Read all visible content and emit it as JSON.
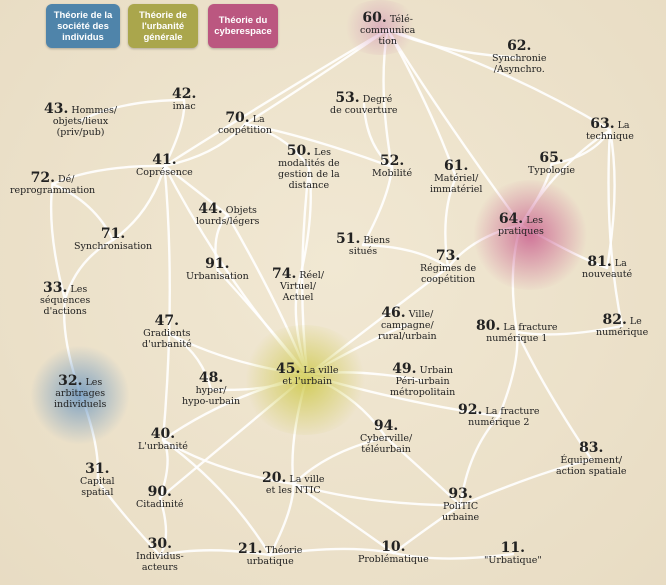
{
  "legend": {
    "individus": "Théorie de la société des individus",
    "urbanite": "Théorie de l'urbanité générale",
    "cyberespace": "Théorie du cyberespace"
  },
  "nodes": [
    {
      "id": "60",
      "num": "60.",
      "label": "Télé-communica tion"
    },
    {
      "id": "62",
      "num": "62.",
      "label": "Synchronie /Asynchro."
    },
    {
      "id": "42",
      "num": "42.",
      "label": "imac"
    },
    {
      "id": "43",
      "num": "43.",
      "label": "Hommes/ objets/lieux (priv/pub)"
    },
    {
      "id": "70",
      "num": "70.",
      "label": "La coopétition"
    },
    {
      "id": "53",
      "num": "53.",
      "label": "Degré de couverture"
    },
    {
      "id": "63",
      "num": "63.",
      "label": "La technique"
    },
    {
      "id": "41",
      "num": "41.",
      "label": "Coprésence"
    },
    {
      "id": "50",
      "num": "50.",
      "label": "Les modalités de gestion de la distance"
    },
    {
      "id": "52",
      "num": "52.",
      "label": "Mobilité"
    },
    {
      "id": "61",
      "num": "61.",
      "label": "Matériel/ immatériel"
    },
    {
      "id": "65",
      "num": "65.",
      "label": "Typologie"
    },
    {
      "id": "72",
      "num": "72.",
      "label": "Dé/ reprogrammation"
    },
    {
      "id": "44",
      "num": "44.",
      "label": "Objets lourds/légers"
    },
    {
      "id": "64",
      "num": "64.",
      "label": "Les pratiques"
    },
    {
      "id": "71",
      "num": "71.",
      "label": "Synchronisation"
    },
    {
      "id": "51",
      "num": "51.",
      "label": "Biens situés"
    },
    {
      "id": "91",
      "num": "91.",
      "label": "Urbanisation"
    },
    {
      "id": "74",
      "num": "74.",
      "label": "Réel/ Virtuel/ Actuel"
    },
    {
      "id": "73",
      "num": "73.",
      "label": "Régimes de coopétition"
    },
    {
      "id": "81",
      "num": "81.",
      "label": "La nouveauté"
    },
    {
      "id": "33",
      "num": "33.",
      "label": "Les séquences d'actions"
    },
    {
      "id": "46",
      "num": "46.",
      "label": "Ville/ campagne/ rural/urbain"
    },
    {
      "id": "82",
      "num": "82.",
      "label": "Le numérique"
    },
    {
      "id": "47",
      "num": "47.",
      "label": "Gradients d'urbanité"
    },
    {
      "id": "80",
      "num": "80.",
      "label": "La fracture numérique 1"
    },
    {
      "id": "45",
      "num": "45.",
      "label": "La ville et l'urbain"
    },
    {
      "id": "49",
      "num": "49.",
      "label": "Urbain Péri-urbain métropolitain"
    },
    {
      "id": "32",
      "num": "32.",
      "label": "Les arbitrages individuels"
    },
    {
      "id": "48",
      "num": "48.",
      "label": "hyper/ hypo-urbain"
    },
    {
      "id": "92",
      "num": "92.",
      "label": "La fracture numérique 2"
    },
    {
      "id": "40",
      "num": "40.",
      "label": "L'urbanité"
    },
    {
      "id": "94",
      "num": "94.",
      "label": "Cyberville/ téléurbain"
    },
    {
      "id": "31",
      "num": "31.",
      "label": "Capital spatial"
    },
    {
      "id": "83",
      "num": "83.",
      "label": "Équipement/ action spatiale"
    },
    {
      "id": "20",
      "num": "20.",
      "label": "La ville et les NTIC"
    },
    {
      "id": "90",
      "num": "90.",
      "label": "Citadinité"
    },
    {
      "id": "93",
      "num": "93.",
      "label": "PoliTIC urbaine"
    },
    {
      "id": "30",
      "num": "30.",
      "label": "Individus-acteurs"
    },
    {
      "id": "21",
      "num": "21.",
      "label": "Théorie urbatique"
    },
    {
      "id": "10",
      "num": "10.",
      "label": "Problématique"
    },
    {
      "id": "11",
      "num": "11.",
      "label": "\"Urbatique\""
    }
  ],
  "colors": {
    "individus": "#4a7fa6",
    "urbanite": "#a9a54a",
    "cyberespace": "#b9557d",
    "edge": "#ffffff"
  }
}
